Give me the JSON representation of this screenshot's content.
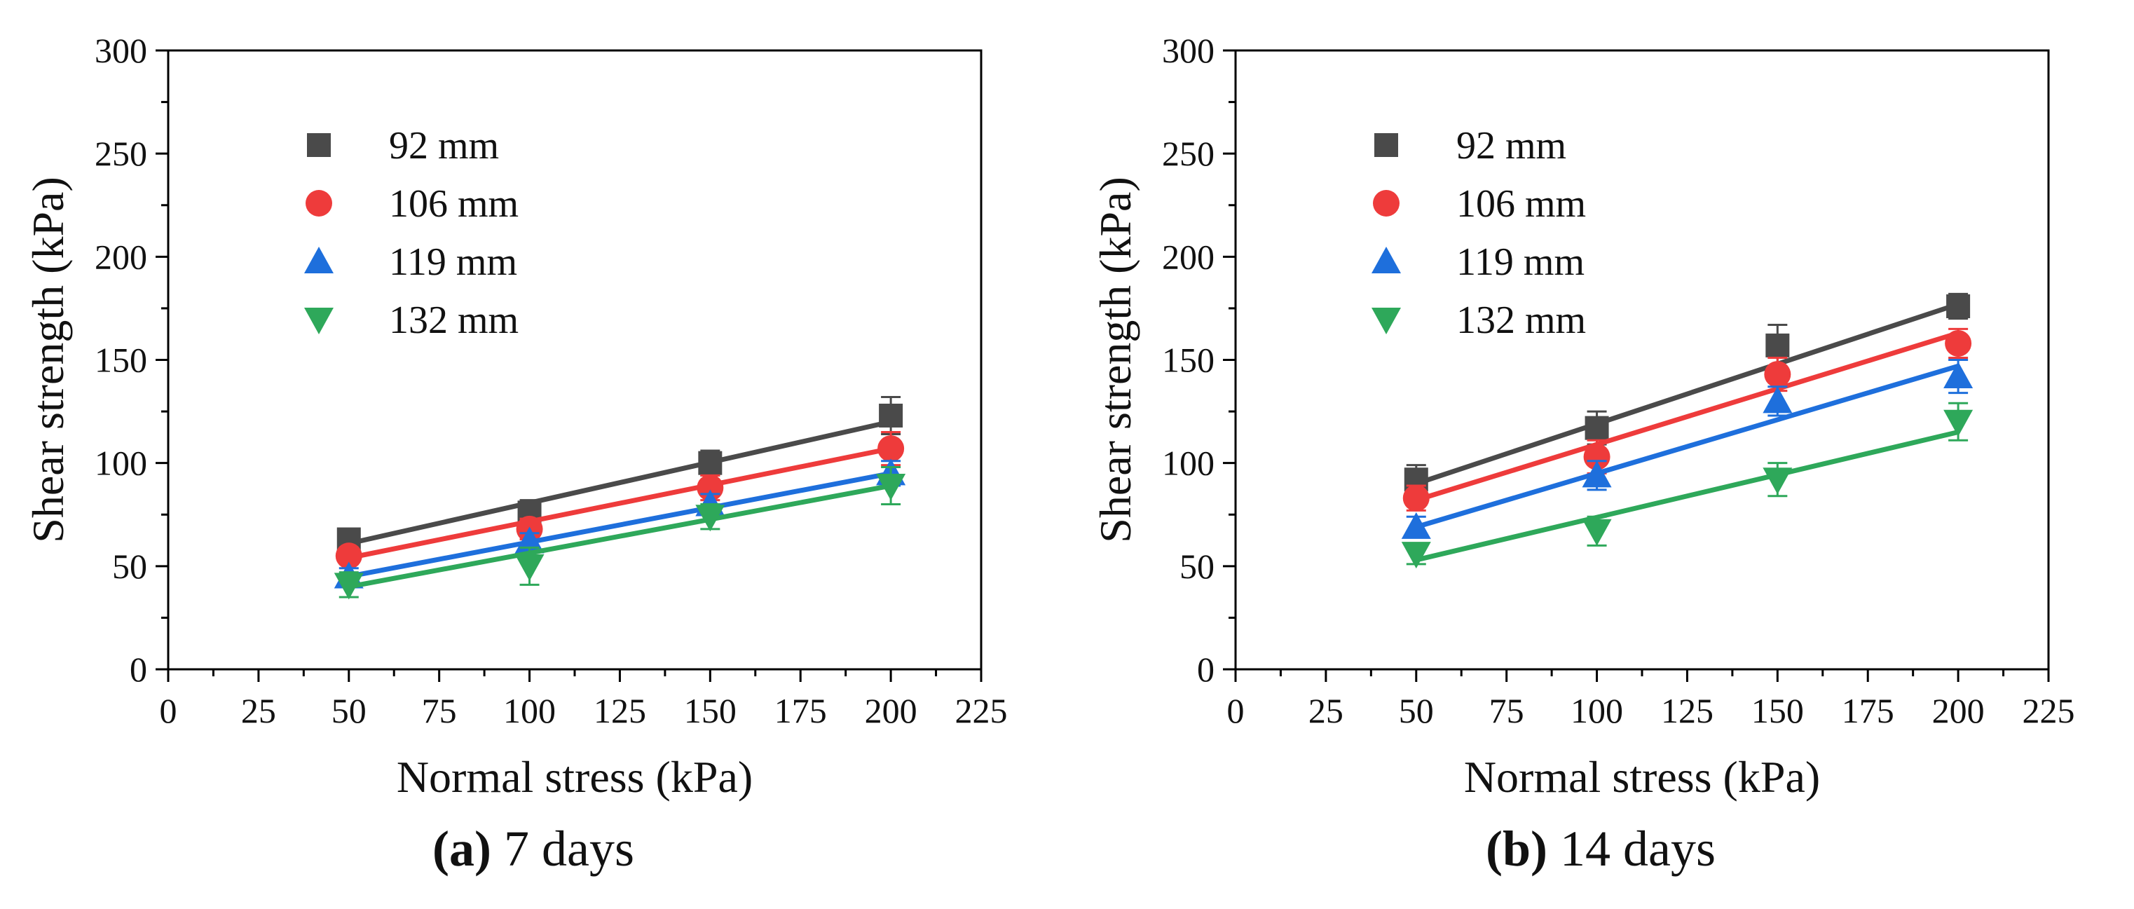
{
  "chart_data": [
    {
      "type": "scatter",
      "panel": "(a)",
      "subtitle": "7 days",
      "xlabel": "Normal stress (kPa)",
      "ylabel": "Shear strength (kPa)",
      "xlim": [
        0,
        225
      ],
      "ylim": [
        0,
        300
      ],
      "xticks": [
        0,
        25,
        50,
        75,
        100,
        125,
        150,
        175,
        200,
        225
      ],
      "yticks": [
        0,
        50,
        100,
        150,
        200,
        250,
        300
      ],
      "legend_position": "top-left",
      "grid": false,
      "series": [
        {
          "name": "92 mm",
          "marker": "square",
          "color": "#4a4a4a",
          "x": [
            50,
            100,
            150,
            200
          ],
          "y": [
            63,
            76,
            100,
            123
          ],
          "err": [
            4,
            6,
            6,
            9
          ],
          "fit": [
            [
              50,
              61
            ],
            [
              200,
              120
            ]
          ]
        },
        {
          "name": "106 mm",
          "marker": "circle",
          "color": "#ee3b3b",
          "x": [
            50,
            100,
            150,
            200
          ],
          "y": [
            55,
            68,
            88,
            107
          ],
          "err": [
            4,
            5,
            6,
            8
          ],
          "fit": [
            [
              50,
              54
            ],
            [
              200,
              107
            ]
          ]
        },
        {
          "name": "119 mm",
          "marker": "triangle-up",
          "color": "#1e6fdc",
          "x": [
            50,
            100,
            150,
            200
          ],
          "y": [
            45,
            62,
            80,
            95
          ],
          "err": [
            4,
            4,
            5,
            6
          ],
          "fit": [
            [
              50,
              45
            ],
            [
              200,
              95
            ]
          ]
        },
        {
          "name": "132 mm",
          "marker": "triangle-down",
          "color": "#2ea85a",
          "x": [
            50,
            100,
            150,
            200
          ],
          "y": [
            41,
            50,
            74,
            89
          ],
          "err": [
            6,
            9,
            6,
            9
          ],
          "fit": [
            [
              50,
              40
            ],
            [
              200,
              89
            ]
          ]
        }
      ]
    },
    {
      "type": "scatter",
      "panel": "(b)",
      "subtitle": "14 days",
      "xlabel": "Normal stress (kPa)",
      "ylabel": "Shear strength (kPa)",
      "xlim": [
        0,
        225
      ],
      "ylim": [
        0,
        300
      ],
      "xticks": [
        0,
        25,
        50,
        75,
        100,
        125,
        150,
        175,
        200,
        225
      ],
      "yticks": [
        0,
        50,
        100,
        150,
        200,
        250,
        300
      ],
      "legend_position": "top-left",
      "grid": false,
      "series": [
        {
          "name": "92 mm",
          "marker": "square",
          "color": "#4a4a4a",
          "x": [
            50,
            100,
            150,
            200
          ],
          "y": [
            92,
            117,
            157,
            176
          ],
          "err": [
            7,
            8,
            10,
            6
          ],
          "fit": [
            [
              50,
              90
            ],
            [
              200,
              177
            ]
          ]
        },
        {
          "name": "106 mm",
          "marker": "circle",
          "color": "#ee3b3b",
          "x": [
            50,
            100,
            150,
            200
          ],
          "y": [
            83,
            103,
            143,
            158
          ],
          "err": [
            6,
            8,
            8,
            7
          ],
          "fit": [
            [
              50,
              82
            ],
            [
              200,
              163
            ]
          ]
        },
        {
          "name": "119 mm",
          "marker": "triangle-up",
          "color": "#1e6fdc",
          "x": [
            50,
            100,
            150,
            200
          ],
          "y": [
            69,
            94,
            130,
            142
          ],
          "err": [
            5,
            7,
            7,
            8
          ],
          "fit": [
            [
              50,
              69
            ],
            [
              200,
              147
            ]
          ]
        },
        {
          "name": "132 mm",
          "marker": "triangle-down",
          "color": "#2ea85a",
          "x": [
            50,
            100,
            150,
            200
          ],
          "y": [
            56,
            67,
            92,
            120
          ],
          "err": [
            5,
            7,
            8,
            9
          ],
          "fit": [
            [
              50,
              53
            ],
            [
              200,
              115
            ]
          ]
        }
      ]
    }
  ]
}
